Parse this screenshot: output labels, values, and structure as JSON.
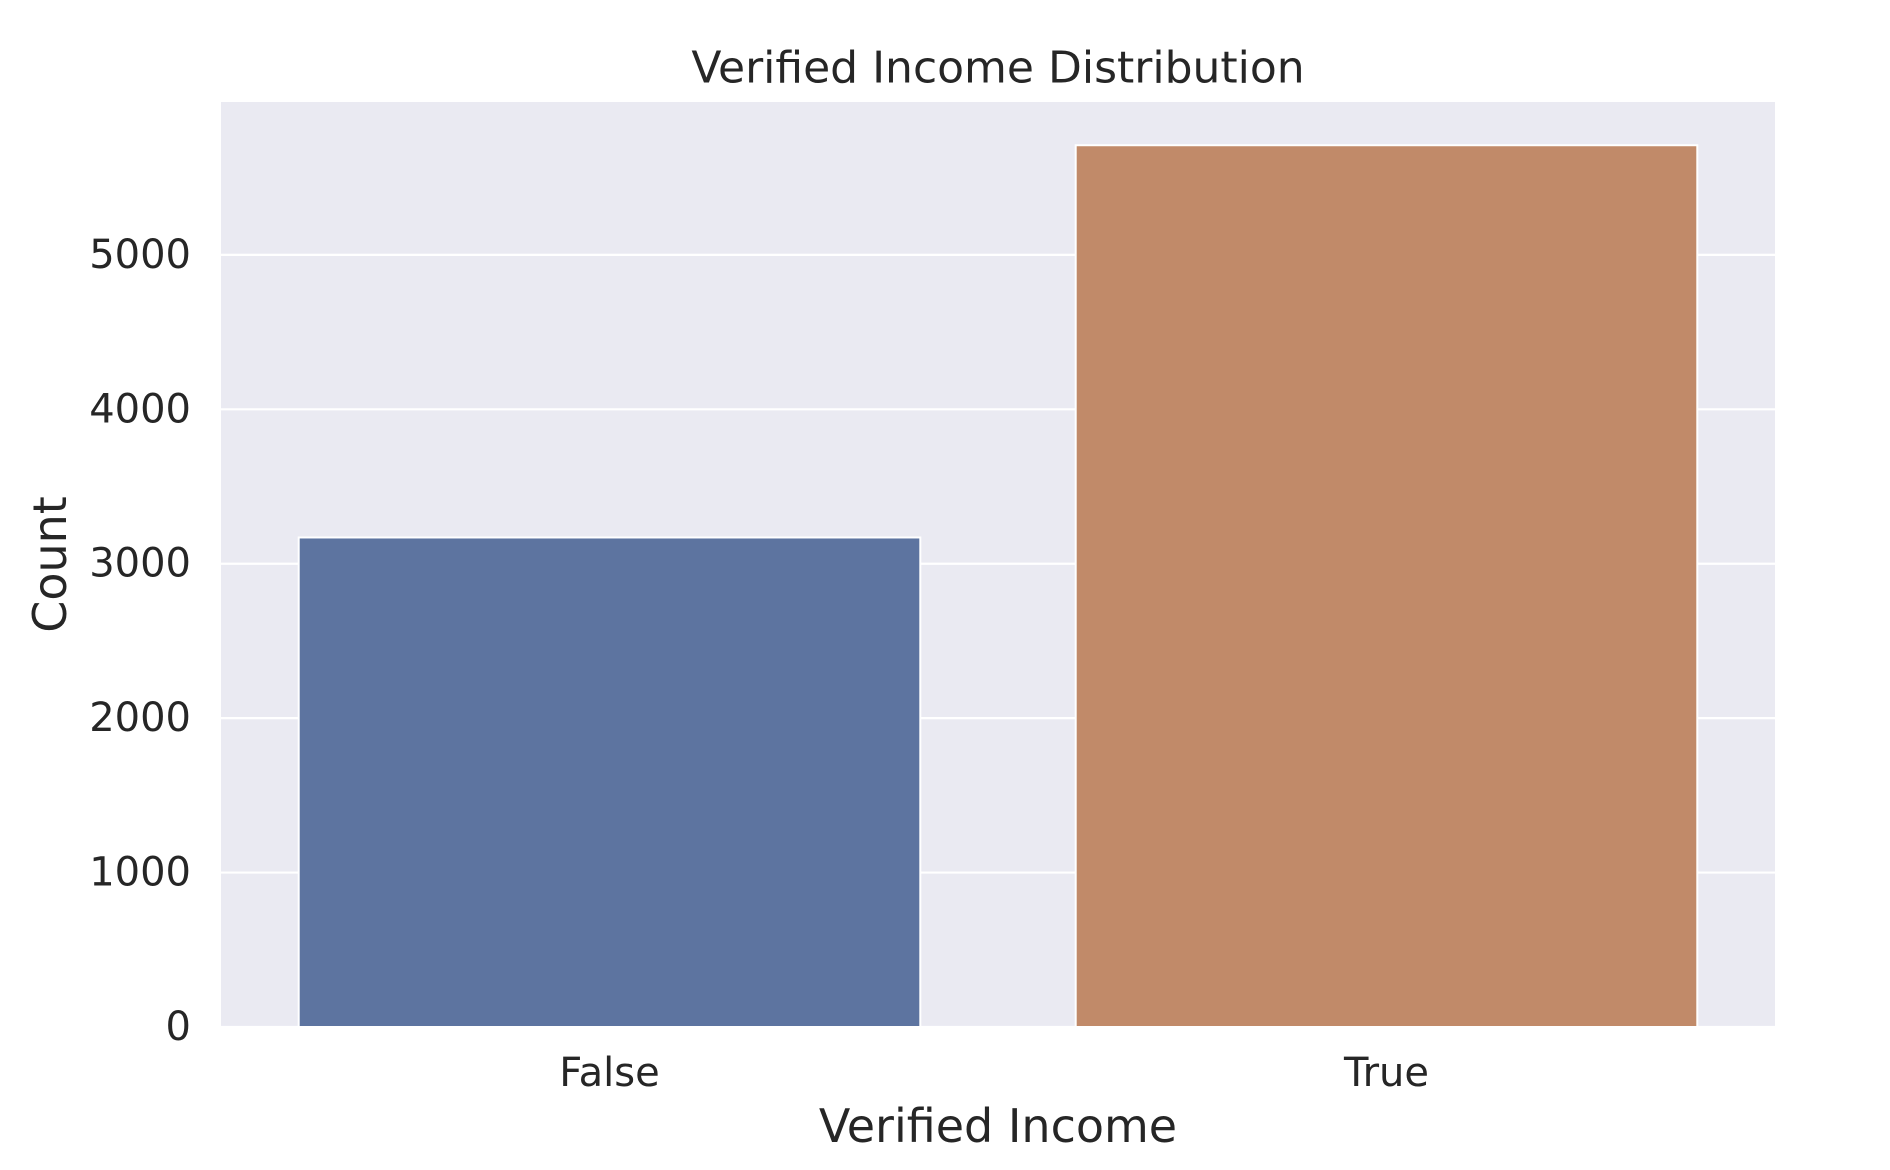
{
  "chart_data": {
    "type": "bar",
    "title": "Verified Income Distribution",
    "xlabel": "Verified Income",
    "ylabel": "Count",
    "categories": [
      "False",
      "True"
    ],
    "values": [
      3170,
      5710
    ],
    "ylim": [
      0,
      5990
    ],
    "yticks": [
      0,
      1000,
      2000,
      3000,
      4000,
      5000
    ],
    "grid": true,
    "colors": [
      "#5d74a0",
      "#c18a69"
    ],
    "background": "#eaeaf2",
    "gridline_color": "#ffffff"
  }
}
